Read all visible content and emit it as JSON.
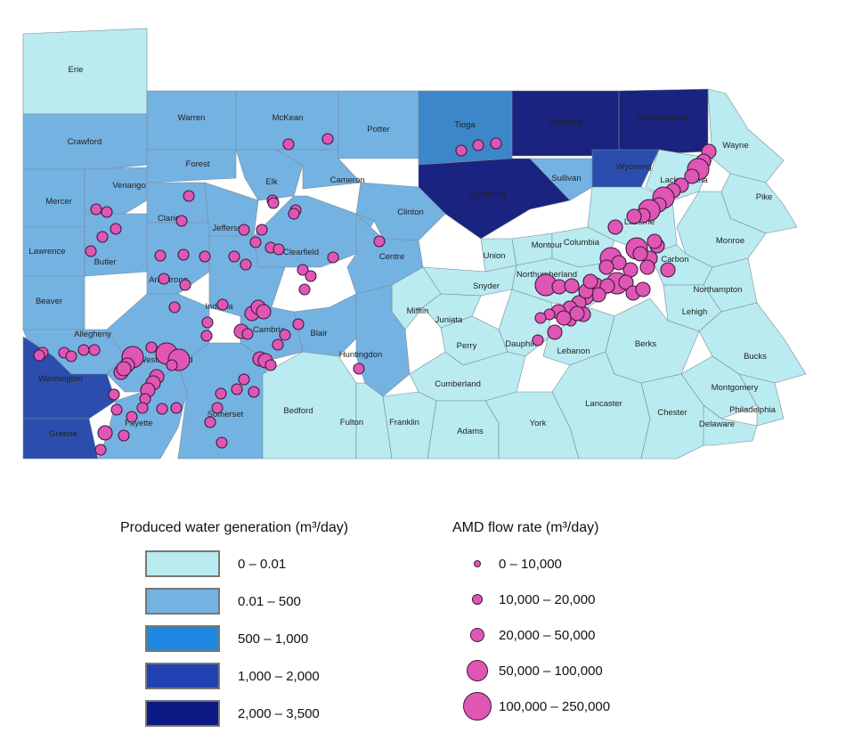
{
  "colors": {
    "class_0": "#b9ebf0",
    "class_1": "#74b2e2",
    "class_2": "#3c86c9",
    "class_3": "#2b4eae",
    "class_4": "#1a237f",
    "dot_fill": "#e056b5",
    "dot_stroke": "#3a1a3a"
  },
  "counties": [
    {
      "name": "Erie",
      "cls": 0
    },
    {
      "name": "Warren",
      "cls": 1
    },
    {
      "name": "McKean",
      "cls": 1
    },
    {
      "name": "Potter",
      "cls": 1
    },
    {
      "name": "Tioga",
      "cls": 2
    },
    {
      "name": "Bradford",
      "cls": 4
    },
    {
      "name": "Susquehanna",
      "cls": 4
    },
    {
      "name": "Wayne",
      "cls": 0
    },
    {
      "name": "Crawford",
      "cls": 1
    },
    {
      "name": "Forest",
      "cls": 1
    },
    {
      "name": "Elk",
      "cls": 1
    },
    {
      "name": "Cameron",
      "cls": 1
    },
    {
      "name": "Lycoming",
      "cls": 4
    },
    {
      "name": "Sullivan",
      "cls": 1
    },
    {
      "name": "Wyoming",
      "cls": 3
    },
    {
      "name": "Lackawanna",
      "cls": 0
    },
    {
      "name": "Pike",
      "cls": 0
    },
    {
      "name": "Mercer",
      "cls": 1
    },
    {
      "name": "Venango",
      "cls": 1
    },
    {
      "name": "Clarion",
      "cls": 1
    },
    {
      "name": "Jefferson",
      "cls": 1
    },
    {
      "name": "Clinton",
      "cls": 1
    },
    {
      "name": "Luzerne",
      "cls": 0
    },
    {
      "name": "Monroe",
      "cls": 0
    },
    {
      "name": "Lawrence",
      "cls": 1
    },
    {
      "name": "Butler",
      "cls": 1
    },
    {
      "name": "Clearfield",
      "cls": 1
    },
    {
      "name": "Centre",
      "cls": 1
    },
    {
      "name": "Union",
      "cls": 0
    },
    {
      "name": "Montour",
      "cls": 0
    },
    {
      "name": "Columbia",
      "cls": 0
    },
    {
      "name": "Carbon",
      "cls": 0
    },
    {
      "name": "Beaver",
      "cls": 1
    },
    {
      "name": "Armstrong",
      "cls": 1
    },
    {
      "name": "Indiana",
      "cls": 1
    },
    {
      "name": "Snyder",
      "cls": 0
    },
    {
      "name": "Northumberland",
      "cls": 0
    },
    {
      "name": "Northampton",
      "cls": 0
    },
    {
      "name": "Mifflin",
      "cls": 0
    },
    {
      "name": "Juniata",
      "cls": 0
    },
    {
      "name": "Lehigh",
      "cls": 0
    },
    {
      "name": "Allegheny",
      "cls": 1
    },
    {
      "name": "Westmoreland",
      "cls": 1
    },
    {
      "name": "Cambria",
      "cls": 1
    },
    {
      "name": "Blair",
      "cls": 1
    },
    {
      "name": "Perry",
      "cls": 0
    },
    {
      "name": "Dauphin",
      "cls": 0
    },
    {
      "name": "Lebanon",
      "cls": 0
    },
    {
      "name": "Berks",
      "cls": 0
    },
    {
      "name": "Bucks",
      "cls": 0
    },
    {
      "name": "Washington",
      "cls": 3
    },
    {
      "name": "Huntingdon",
      "cls": 1
    },
    {
      "name": "Cumberland",
      "cls": 0
    },
    {
      "name": "Montgomery",
      "cls": 0
    },
    {
      "name": "Philadelphia",
      "cls": 0
    },
    {
      "name": "Fayette",
      "cls": 1
    },
    {
      "name": "Somerset",
      "cls": 1
    },
    {
      "name": "Bedford",
      "cls": 0
    },
    {
      "name": "Fulton",
      "cls": 0
    },
    {
      "name": "Franklin",
      "cls": 0
    },
    {
      "name": "Adams",
      "cls": 0
    },
    {
      "name": "York",
      "cls": 0
    },
    {
      "name": "Lancaster",
      "cls": 0
    },
    {
      "name": "Chester",
      "cls": 0
    },
    {
      "name": "Delaware",
      "cls": 0
    },
    {
      "name": "Greene",
      "cls": 3
    }
  ],
  "legend_fill": {
    "title": "Produced water generation (m³/day)",
    "items": [
      {
        "label": "0 – 0.01",
        "color": "#b9ebf0"
      },
      {
        "label": "0.01 – 500",
        "color": "#74b2e2"
      },
      {
        "label": "500 – 1,000",
        "color": "#1e88e0"
      },
      {
        "label": "1,000 – 2,000",
        "color": "#2242b2"
      },
      {
        "label": "2,000 – 3,500",
        "color": "#0d1a86"
      }
    ]
  },
  "legend_dots": {
    "title": "AMD flow rate (m³/day)",
    "items": [
      {
        "label": "0 – 10,000",
        "size": 8
      },
      {
        "label": "10,000 – 20,000",
        "size": 12
      },
      {
        "label": "20,000 – 50,000",
        "size": 16
      },
      {
        "label": "50,000 – 100,000",
        "size": 24
      },
      {
        "label": "100,000 – 250,000",
        "size": 32
      }
    ]
  }
}
